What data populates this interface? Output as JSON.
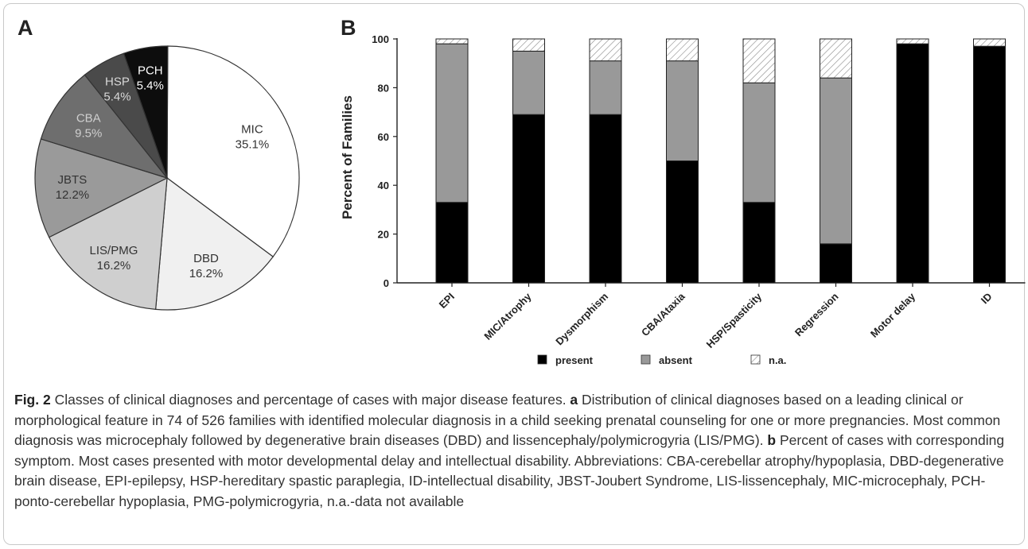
{
  "chart_data": [
    {
      "panel": "A",
      "type": "pie",
      "slices": [
        {
          "label": "MIC",
          "value": 35.1,
          "value_label": "35.1%",
          "color": "#ffffff",
          "text_color": "#333333"
        },
        {
          "label": "DBD",
          "value": 16.2,
          "value_label": "16.2%",
          "color": "#f0f0f0",
          "text_color": "#333333"
        },
        {
          "label": "LIS/PMG",
          "value": 16.2,
          "value_label": "16.2%",
          "color": "#cfcfcf",
          "text_color": "#333333"
        },
        {
          "label": "JBTS",
          "value": 12.2,
          "value_label": "12.2%",
          "color": "#9a9a9a",
          "text_color": "#333333"
        },
        {
          "label": "CBA",
          "value": 9.5,
          "value_label": "9.5%",
          "color": "#6e6e6e",
          "text_color": "#cfcfcf"
        },
        {
          "label": "HSP",
          "value": 5.4,
          "value_label": "5.4%",
          "color": "#4a4a4a",
          "text_color": "#d8d8d8"
        },
        {
          "label": "PCH",
          "value": 5.4,
          "value_label": "5.4%",
          "color": "#0d0d0d",
          "text_color": "#ffffff"
        }
      ]
    },
    {
      "panel": "B",
      "type": "bar",
      "stacked": true,
      "categories": [
        "EPI",
        "MIC/Atrophy",
        "Dysmorphism",
        "CBA/Ataxia",
        "HSP/Spasticity",
        "Regression",
        "Motor delay",
        "ID"
      ],
      "series": [
        {
          "name": "present",
          "color": "#000000",
          "values": [
            33,
            69,
            69,
            50,
            33,
            16,
            98,
            97
          ]
        },
        {
          "name": "absent",
          "color": "#999999",
          "values": [
            65,
            26,
            22,
            41,
            49,
            68,
            0,
            0
          ]
        },
        {
          "name": "n.a.",
          "color": "hatch",
          "values": [
            2,
            5,
            9,
            9,
            18,
            16,
            2,
            3
          ]
        }
      ],
      "ylabel": "Percent of Families",
      "xlabel": "",
      "ylim": [
        0,
        100
      ],
      "yticks": [
        0,
        20,
        40,
        60,
        80,
        100
      ],
      "grid": false,
      "legend": "bottom"
    }
  ],
  "caption": {
    "fig_label": "Fig. 2",
    "text1": " Classes of clinical diagnoses and percentage of cases with major disease features. ",
    "a_label": "a",
    "text2": " Distribution of clinical diagnoses based on a leading clinical or morphological feature in 74 of 526 families with identified molecular diagnosis in a child seeking prenatal counseling for one or more pregnancies. Most common diagnosis was microcephaly followed by degenerative brain diseases (DBD) and lissencephaly/polymicrogyria (LIS/PMG). ",
    "b_label": "b",
    "text3": " Percent of cases with corresponding symptom. Most cases presented with motor developmental delay and intellectual disability. Abbreviations: CBA-cerebellar atrophy/hypoplasia, DBD-degenerative brain disease, EPI-epilepsy, HSP-hereditary spastic paraplegia, ID-intellectual disability, JBST-Joubert Syndrome, LIS-lissencephaly, MIC-microcephaly, PCH-ponto-cerebellar hypoplasia, PMG-polymicrogyria, n.a.-data not available"
  }
}
